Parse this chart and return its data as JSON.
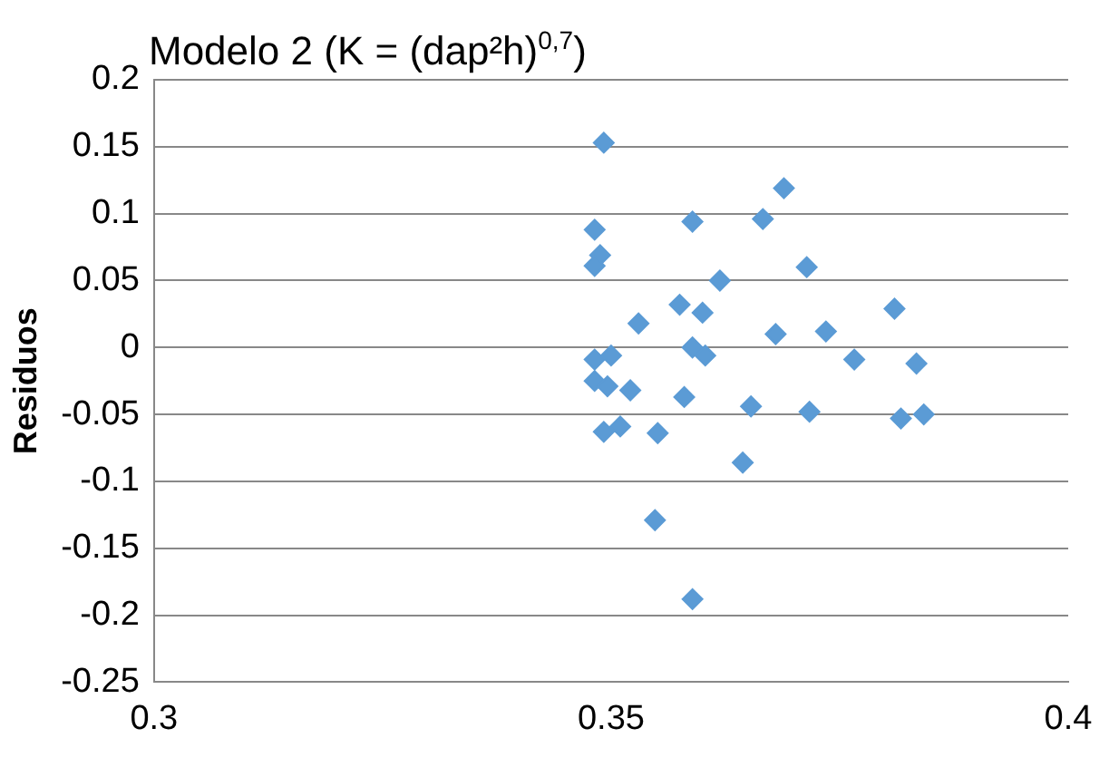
{
  "chart_data": {
    "type": "scatter",
    "title": "Modelo 2 (K = (dap²h)$^{0,7}$)",
    "ylabel": "Residuos",
    "xlim": [
      0.3,
      0.4
    ],
    "xticks": [
      0.3,
      0.35,
      0.4
    ],
    "ylim": [
      -0.25,
      0.2
    ],
    "yticks": [
      -0.25,
      -0.2,
      -0.15,
      -0.1,
      -0.05,
      0,
      0.05,
      0.1,
      0.15,
      0.2
    ],
    "grid": "y",
    "marker": "diamond",
    "legend": false,
    "series": [
      {
        "color": "#5b9bd5",
        "x": [
          0.3492,
          0.3482,
          0.3488,
          0.3482,
          0.3589,
          0.3689,
          0.3666,
          0.3714,
          0.3619,
          0.3575,
          0.36,
          0.353,
          0.381,
          0.368,
          0.3735,
          0.3766,
          0.3834,
          0.3589,
          0.3603,
          0.3482,
          0.35,
          0.3482,
          0.3496,
          0.3521,
          0.358,
          0.3653,
          0.3717,
          0.3817,
          0.3842,
          0.3492,
          0.351,
          0.3551,
          0.3644,
          0.3548,
          0.3589
        ],
        "values": [
          0.153,
          0.088,
          0.069,
          0.061,
          0.094,
          0.119,
          0.096,
          0.06,
          0.05,
          0.032,
          0.026,
          0.018,
          0.029,
          0.01,
          0.012,
          -0.009,
          -0.012,
          0.0,
          -0.006,
          -0.009,
          -0.006,
          -0.025,
          -0.029,
          -0.032,
          -0.037,
          -0.044,
          -0.048,
          -0.053,
          -0.05,
          -0.063,
          -0.059,
          -0.064,
          -0.086,
          -0.129,
          -0.188
        ]
      }
    ]
  }
}
